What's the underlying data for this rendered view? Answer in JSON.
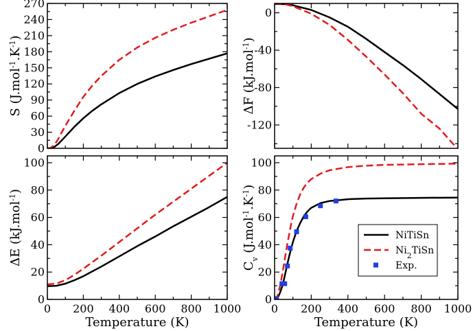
{
  "chart_data": [
    {
      "type": "line",
      "title": "",
      "xlabel": "",
      "ylabel": "S (J.mol⁻¹.K⁻¹)",
      "ylabel_parts": [
        "S (J.mol",
        "-1",
        ".K",
        "-1",
        ")"
      ],
      "xlim": [
        0,
        1000
      ],
      "ylim": [
        0,
        270
      ],
      "xticks": [
        0,
        200,
        400,
        600,
        800,
        1000
      ],
      "yticks": [
        0,
        30,
        60,
        90,
        120,
        150,
        180,
        210,
        240,
        270
      ],
      "show_xtick_labels": false,
      "series": [
        {
          "name": "NiTiSn",
          "color": "#000000",
          "dash": "solid",
          "x": [
            0,
            20,
            40,
            60,
            80,
            100,
            150,
            200,
            250,
            300,
            400,
            500,
            600,
            700,
            800,
            900,
            1000
          ],
          "y": [
            0,
            0.5,
            3,
            8,
            15,
            22,
            40,
            56,
            70,
            82,
            103,
            120,
            134,
            146,
            157,
            167,
            177
          ]
        },
        {
          "name": "Ni2TiSn",
          "color": "#e31a1c",
          "dash": "dashed",
          "x": [
            0,
            20,
            40,
            60,
            80,
            100,
            150,
            200,
            250,
            300,
            400,
            500,
            600,
            700,
            800,
            900,
            1000
          ],
          "y": [
            0,
            1,
            7,
            17,
            30,
            42,
            70,
            96,
            117,
            135,
            165,
            188,
            206,
            221,
            234,
            246,
            258
          ]
        }
      ]
    },
    {
      "type": "line",
      "title": "",
      "xlabel": "",
      "ylabel": "ΔF (kJ.mol⁻¹)",
      "ylabel_parts": [
        "ΔF (kJ.mol",
        "-1",
        ")"
      ],
      "xlim": [
        0,
        1000
      ],
      "ylim": [
        -145,
        10
      ],
      "xticks": [
        0,
        200,
        400,
        600,
        800,
        1000
      ],
      "yticks": [
        0,
        -40,
        -80,
        -120
      ],
      "show_xtick_labels": false,
      "series": [
        {
          "name": "NiTiSn",
          "color": "#000000",
          "dash": "solid",
          "x": [
            0,
            50,
            100,
            200,
            300,
            400,
            500,
            600,
            700,
            800,
            900,
            1000
          ],
          "y": [
            9.5,
            9.3,
            8,
            3,
            -5,
            -15,
            -28,
            -42,
            -56,
            -71,
            -87,
            -103
          ]
        },
        {
          "name": "Ni2TiSn",
          "color": "#e31a1c",
          "dash": "dashed",
          "x": [
            0,
            50,
            100,
            200,
            300,
            400,
            500,
            600,
            700,
            800,
            900,
            1000
          ],
          "y": [
            10,
            9.5,
            7,
            -1,
            -13,
            -29,
            -47,
            -66,
            -86,
            -108,
            -124,
            -146
          ]
        }
      ]
    },
    {
      "type": "line",
      "title": "",
      "xlabel": "Temperature (K)",
      "ylabel": "ΔE (kJ.mol⁻¹)",
      "ylabel_parts": [
        "ΔE (kJ.mol",
        "-1",
        ")"
      ],
      "xlim": [
        0,
        1000
      ],
      "ylim": [
        0,
        105
      ],
      "xticks": [
        0,
        200,
        400,
        600,
        800,
        1000
      ],
      "yticks": [
        0,
        20,
        40,
        60,
        80,
        100
      ],
      "show_xtick_labels": true,
      "series": [
        {
          "name": "NiTiSn",
          "color": "#000000",
          "dash": "solid",
          "x": [
            0,
            50,
            100,
            150,
            200,
            300,
            400,
            500,
            600,
            700,
            800,
            900,
            1000
          ],
          "y": [
            9.7,
            10,
            11.5,
            14,
            17,
            24,
            31.5,
            39,
            46,
            53.5,
            60.5,
            67.5,
            75
          ]
        },
        {
          "name": "Ni2TiSn",
          "color": "#e31a1c",
          "dash": "dashed",
          "x": [
            0,
            50,
            100,
            150,
            200,
            300,
            400,
            500,
            600,
            700,
            800,
            900,
            1000
          ],
          "y": [
            11,
            11.6,
            14,
            18,
            22.5,
            32,
            42,
            52,
            62,
            71.5,
            81,
            90.5,
            100
          ]
        }
      ]
    },
    {
      "type": "line",
      "title": "",
      "xlabel": "Temperature (K)",
      "ylabel": "Cᵥ (J.mol⁻¹.K⁻¹)",
      "ylabel_parts": [
        "C",
        "v",
        " (J.mol",
        "-1",
        ".K",
        "-1",
        ")"
      ],
      "xlim": [
        0,
        1000
      ],
      "ylim": [
        0,
        105
      ],
      "xticks": [
        0,
        200,
        400,
        600,
        800,
        1000
      ],
      "yticks": [
        0,
        20,
        40,
        60,
        80,
        100
      ],
      "show_xtick_labels": true,
      "legend": {
        "placement": "lower-right",
        "entries": [
          {
            "label_parts": [
              "NiTiSn"
            ],
            "kind": "line",
            "color": "#000000",
            "dash": "solid"
          },
          {
            "label_parts": [
              "Ni",
              "2",
              "TiSn"
            ],
            "kind": "line",
            "color": "#e31a1c",
            "dash": "dashed"
          },
          {
            "label_parts": [
              "Exp."
            ],
            "kind": "marker",
            "color": "#1f3fe0"
          }
        ]
      },
      "series": [
        {
          "name": "NiTiSn",
          "color": "#000000",
          "dash": "solid",
          "kind": "line",
          "x": [
            0,
            10,
            20,
            30,
            40,
            50,
            60,
            70,
            80,
            90,
            100,
            120,
            140,
            160,
            180,
            200,
            250,
            300,
            400,
            500,
            600,
            800,
            1000
          ],
          "y": [
            0,
            0.5,
            2,
            5,
            9,
            14,
            20,
            26,
            32,
            37,
            42,
            50,
            56,
            61,
            64.5,
            67,
            70.5,
            72,
            73.3,
            73.8,
            74,
            74.3,
            74.5
          ]
        },
        {
          "name": "Ni2TiSn",
          "color": "#e31a1c",
          "dash": "dashed",
          "kind": "line",
          "x": [
            0,
            10,
            20,
            30,
            40,
            50,
            60,
            70,
            80,
            90,
            100,
            120,
            140,
            160,
            180,
            200,
            250,
            300,
            400,
            500,
            600,
            800,
            1000
          ],
          "y": [
            0,
            1,
            4,
            10,
            17,
            25,
            33,
            41,
            48,
            55,
            61,
            70,
            77,
            82,
            85.5,
            88,
            92,
            94.5,
            96.8,
            97.8,
            98.4,
            98.9,
            99.3
          ]
        },
        {
          "name": "Exp.",
          "color": "#1f3fe0",
          "kind": "marker",
          "x": [
            10,
            40,
            55,
            70,
            85,
            120,
            170,
            250,
            335
          ],
          "y": [
            0.5,
            11.5,
            11.5,
            24.5,
            37.5,
            49.5,
            60.5,
            68.5,
            72
          ]
        }
      ]
    }
  ]
}
